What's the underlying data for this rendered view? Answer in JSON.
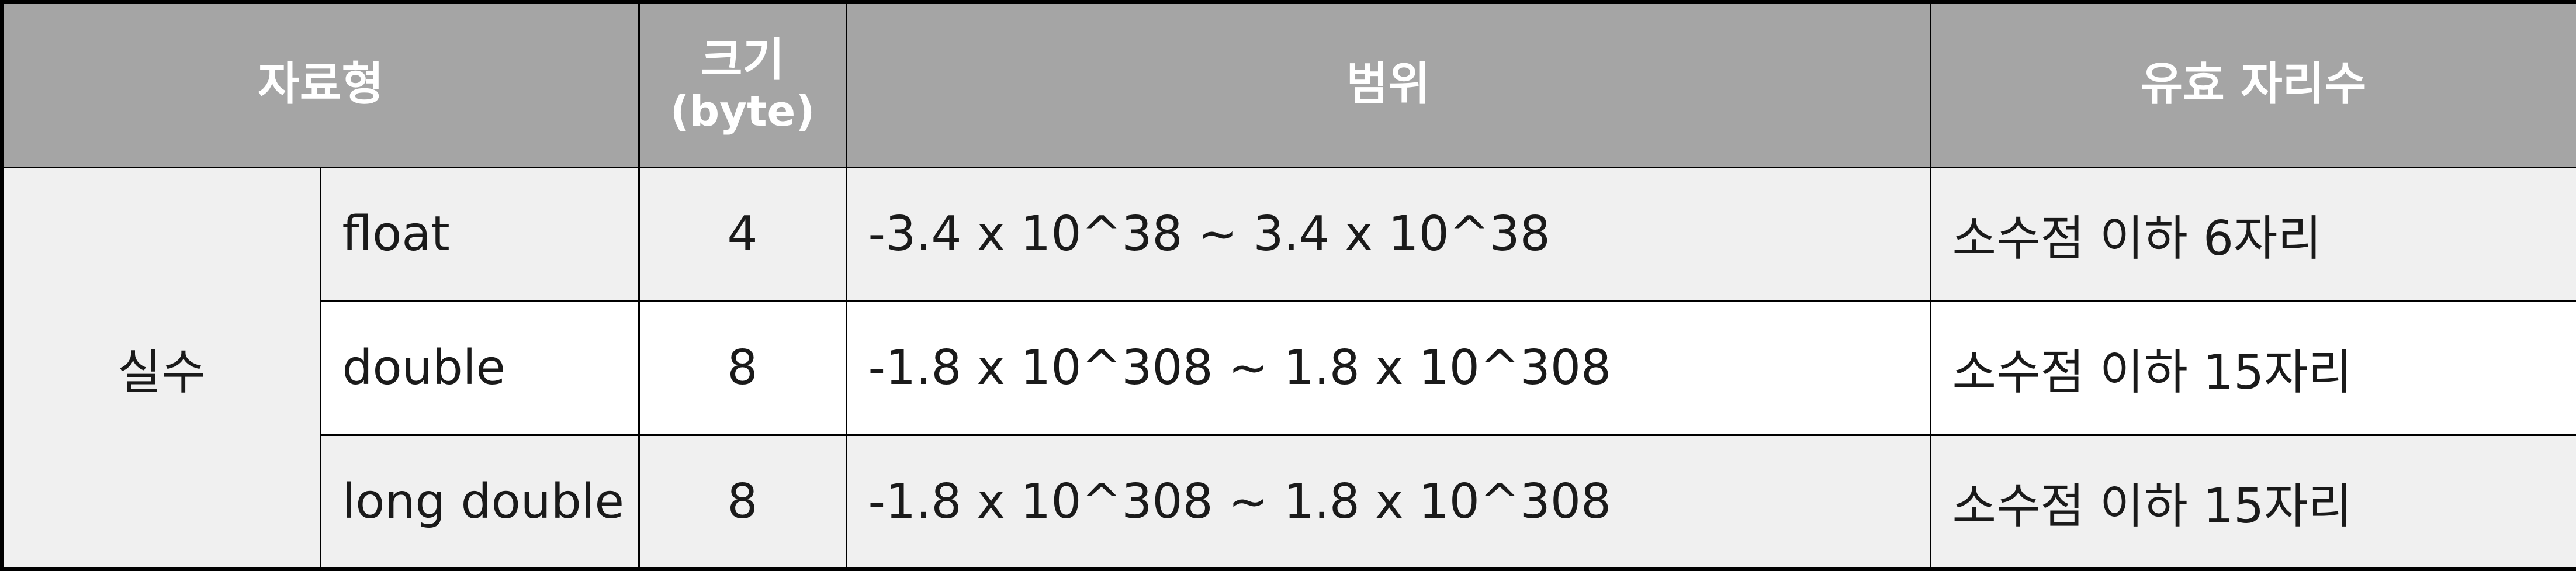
{
  "headers": {
    "type": "자료형",
    "size_line1": "크기",
    "size_line2": "(byte)",
    "range": "범위",
    "precision": "유효 자리수"
  },
  "category": "실수",
  "rows": [
    {
      "type": "float",
      "size": "4",
      "range": "-3.4 x 10^38 ~ 3.4 x 10^38",
      "precision": "소수점 이하 6자리"
    },
    {
      "type": "double",
      "size": "8",
      "range": "-1.8 x 10^308 ~ 1.8 x 10^308",
      "precision": "소수점 이하 15자리"
    },
    {
      "type": "long double",
      "size": "8",
      "range": "-1.8 x 10^308 ~ 1.8 x 10^308",
      "precision": "소수점 이하 15자리"
    }
  ],
  "colors": {
    "header_bg": "#a5a5a5",
    "header_text": "#ffffff",
    "shaded_row": "#f0f0f0",
    "plain_row": "#ffffff",
    "border": "#000000"
  }
}
